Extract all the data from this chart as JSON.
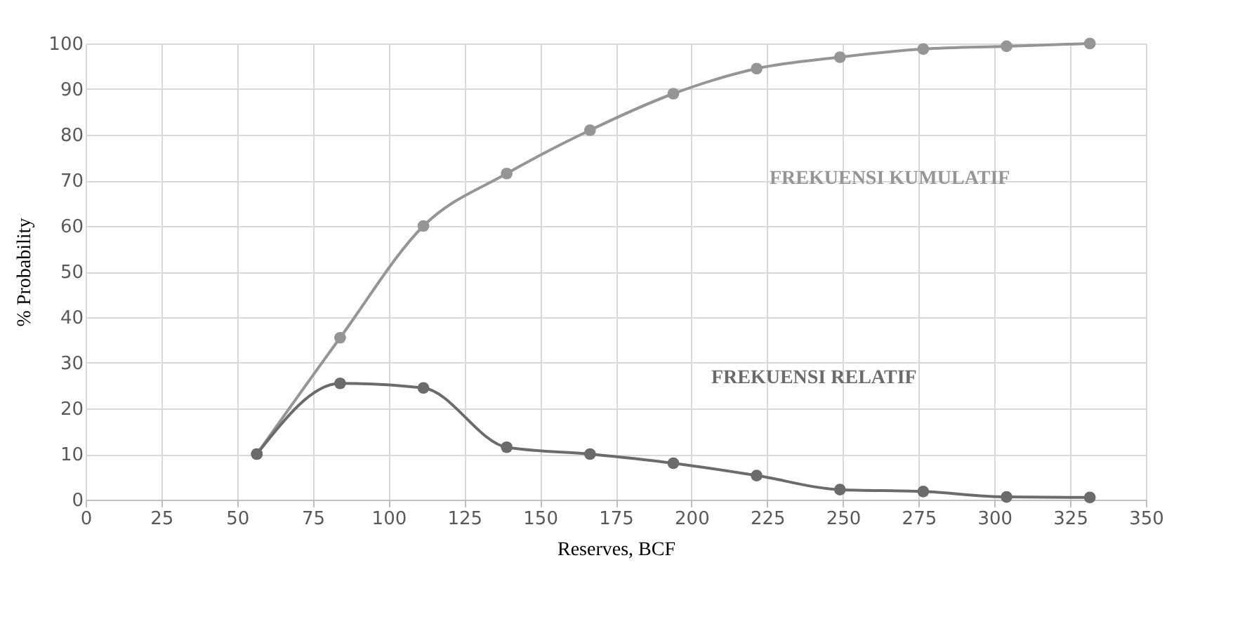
{
  "chart_data": {
    "type": "line",
    "xlabel": "Reserves, BCF",
    "ylabel": "% Probability",
    "x": [
      56.5,
      84,
      111.5,
      139,
      166.5,
      194,
      221.5,
      249,
      276.5,
      304,
      331.5
    ],
    "xlim": [
      0,
      350
    ],
    "xticks": [
      0,
      25,
      50,
      75,
      100,
      125,
      150,
      175,
      200,
      225,
      250,
      275,
      300,
      325,
      350
    ],
    "ylim": [
      0,
      100
    ],
    "yticks": [
      0,
      10,
      20,
      30,
      40,
      50,
      60,
      70,
      80,
      90,
      100
    ],
    "grid": true,
    "marker": "circle",
    "line_style": "solid",
    "series": [
      {
        "name": "FREKUENSI KUMULATIF",
        "color": "#959595",
        "values": [
          10,
          35.5,
          60,
          71.5,
          81,
          89,
          94.5,
          97,
          98.8,
          99.4,
          100
        ]
      },
      {
        "name": "FREKUENSI RELATIF",
        "color": "#6b6b6b",
        "values": [
          10,
          25.5,
          24.5,
          11.5,
          10,
          8,
          5.3,
          2.2,
          1.8,
          0.6,
          0.5
        ]
      }
    ]
  }
}
